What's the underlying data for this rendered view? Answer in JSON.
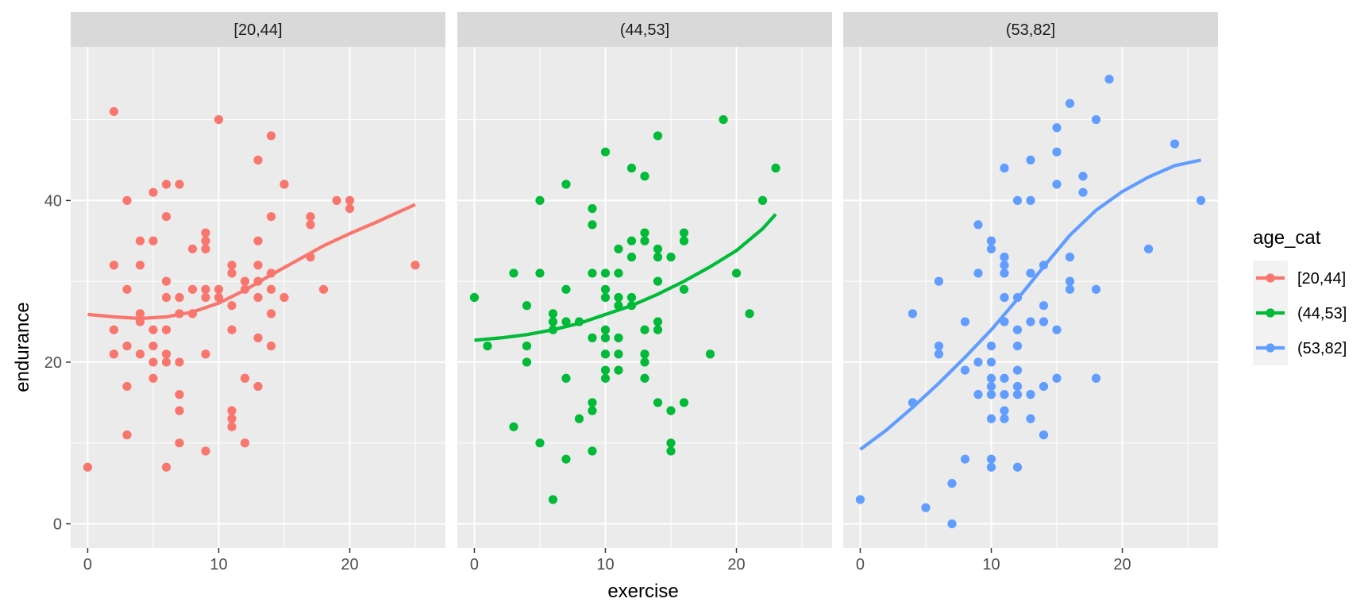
{
  "chart_data": {
    "type": "scatter",
    "title": "",
    "xlabel": "exercise",
    "ylabel": "endurance",
    "xlim": [
      -1.3,
      27.3
    ],
    "ylim": [
      -3,
      59
    ],
    "x_ticks": [
      0,
      10,
      20
    ],
    "y_ticks": [
      0,
      20,
      40
    ],
    "grid": true,
    "facet_by": "age_cat",
    "legend": {
      "title": "age_cat",
      "position": "right",
      "entries": [
        "[20,44]",
        "(44,53]",
        "(53,82]"
      ]
    },
    "panels": [
      {
        "name": "[20,44]",
        "color": "#F8766D",
        "points": [
          [
            0,
            7
          ],
          [
            2,
            51
          ],
          [
            2,
            32
          ],
          [
            2,
            24
          ],
          [
            2,
            21
          ],
          [
            3,
            40
          ],
          [
            3,
            29
          ],
          [
            3,
            22
          ],
          [
            3,
            17
          ],
          [
            3,
            11
          ],
          [
            4,
            35
          ],
          [
            4,
            32
          ],
          [
            4,
            26
          ],
          [
            4,
            25
          ],
          [
            4,
            21
          ],
          [
            5,
            41
          ],
          [
            5,
            35
          ],
          [
            5,
            24
          ],
          [
            5,
            22
          ],
          [
            5,
            20
          ],
          [
            5,
            18
          ],
          [
            6,
            42
          ],
          [
            6,
            38
          ],
          [
            6,
            30
          ],
          [
            6,
            28
          ],
          [
            6,
            24
          ],
          [
            6,
            21
          ],
          [
            6,
            20
          ],
          [
            6,
            7
          ],
          [
            7,
            42
          ],
          [
            7,
            28
          ],
          [
            7,
            26
          ],
          [
            7,
            20
          ],
          [
            7,
            16
          ],
          [
            7,
            14
          ],
          [
            7,
            10
          ],
          [
            8,
            34
          ],
          [
            8,
            29
          ],
          [
            8,
            26
          ],
          [
            9,
            36
          ],
          [
            9,
            35
          ],
          [
            9,
            34
          ],
          [
            9,
            29
          ],
          [
            9,
            28
          ],
          [
            9,
            21
          ],
          [
            9,
            9
          ],
          [
            10,
            50
          ],
          [
            10,
            29
          ],
          [
            10,
            28
          ],
          [
            11,
            32
          ],
          [
            11,
            31
          ],
          [
            11,
            27
          ],
          [
            11,
            24
          ],
          [
            11,
            14
          ],
          [
            11,
            13
          ],
          [
            11,
            12
          ],
          [
            12,
            30
          ],
          [
            12,
            29
          ],
          [
            12,
            18
          ],
          [
            12,
            10
          ],
          [
            13,
            45
          ],
          [
            13,
            35
          ],
          [
            13,
            32
          ],
          [
            13,
            30
          ],
          [
            13,
            28
          ],
          [
            13,
            23
          ],
          [
            13,
            17
          ],
          [
            14,
            48
          ],
          [
            14,
            38
          ],
          [
            14,
            31
          ],
          [
            14,
            29
          ],
          [
            14,
            26
          ],
          [
            14,
            22
          ],
          [
            15,
            42
          ],
          [
            15,
            28
          ],
          [
            17,
            38
          ],
          [
            17,
            37
          ],
          [
            17,
            33
          ],
          [
            18,
            29
          ],
          [
            19,
            40
          ],
          [
            20,
            40
          ],
          [
            20,
            39
          ],
          [
            25,
            32
          ]
        ],
        "smooth": [
          [
            0,
            25.9
          ],
          [
            2,
            25.6
          ],
          [
            4,
            25.4
          ],
          [
            6,
            25.6
          ],
          [
            8,
            26.2
          ],
          [
            10,
            27.3
          ],
          [
            12,
            28.9
          ],
          [
            14,
            30.8
          ],
          [
            16,
            32.6
          ],
          [
            18,
            34.4
          ],
          [
            20,
            35.9
          ],
          [
            22,
            37.3
          ],
          [
            25,
            39.5
          ]
        ]
      },
      {
        "name": "(44,53]",
        "color": "#00BA38",
        "points": [
          [
            0,
            28
          ],
          [
            1,
            22
          ],
          [
            3,
            31
          ],
          [
            3,
            12
          ],
          [
            4,
            27
          ],
          [
            4,
            22
          ],
          [
            4,
            20
          ],
          [
            5,
            40
          ],
          [
            5,
            31
          ],
          [
            5,
            10
          ],
          [
            6,
            26
          ],
          [
            6,
            25
          ],
          [
            6,
            24
          ],
          [
            6,
            3
          ],
          [
            7,
            42
          ],
          [
            7,
            29
          ],
          [
            7,
            25
          ],
          [
            7,
            18
          ],
          [
            7,
            8
          ],
          [
            8,
            25
          ],
          [
            8,
            13
          ],
          [
            9,
            39
          ],
          [
            9,
            37
          ],
          [
            9,
            31
          ],
          [
            9,
            23
          ],
          [
            9,
            15
          ],
          [
            9,
            14
          ],
          [
            9,
            9
          ],
          [
            10,
            46
          ],
          [
            10,
            31
          ],
          [
            10,
            29
          ],
          [
            10,
            28
          ],
          [
            10,
            24
          ],
          [
            10,
            23
          ],
          [
            10,
            21
          ],
          [
            10,
            19
          ],
          [
            10,
            18
          ],
          [
            11,
            34
          ],
          [
            11,
            31
          ],
          [
            11,
            28
          ],
          [
            11,
            27
          ],
          [
            11,
            23
          ],
          [
            11,
            21
          ],
          [
            11,
            19
          ],
          [
            12,
            44
          ],
          [
            12,
            35
          ],
          [
            12,
            33
          ],
          [
            12,
            28
          ],
          [
            12,
            27
          ],
          [
            13,
            43
          ],
          [
            13,
            36
          ],
          [
            13,
            35
          ],
          [
            13,
            24
          ],
          [
            13,
            21
          ],
          [
            13,
            20
          ],
          [
            13,
            18
          ],
          [
            14,
            48
          ],
          [
            14,
            34
          ],
          [
            14,
            33
          ],
          [
            14,
            30
          ],
          [
            14,
            25
          ],
          [
            14,
            24
          ],
          [
            14,
            15
          ],
          [
            15,
            33
          ],
          [
            15,
            14
          ],
          [
            15,
            10
          ],
          [
            15,
            9
          ],
          [
            16,
            36
          ],
          [
            16,
            35
          ],
          [
            16,
            29
          ],
          [
            16,
            15
          ],
          [
            18,
            21
          ],
          [
            19,
            50
          ],
          [
            20,
            31
          ],
          [
            21,
            26
          ],
          [
            22,
            40
          ],
          [
            23,
            44
          ]
        ],
        "smooth": [
          [
            0,
            22.7
          ],
          [
            2,
            23.0
          ],
          [
            4,
            23.4
          ],
          [
            6,
            24.0
          ],
          [
            8,
            24.8
          ],
          [
            10,
            25.9
          ],
          [
            12,
            27.0
          ],
          [
            14,
            28.4
          ],
          [
            16,
            30.0
          ],
          [
            18,
            31.8
          ],
          [
            20,
            33.8
          ],
          [
            22,
            36.5
          ],
          [
            23,
            38.3
          ]
        ]
      },
      {
        "name": "(53,82]",
        "color": "#619CFF",
        "points": [
          [
            0,
            3
          ],
          [
            4,
            26
          ],
          [
            4,
            15
          ],
          [
            5,
            2
          ],
          [
            6,
            30
          ],
          [
            6,
            22
          ],
          [
            6,
            21
          ],
          [
            7,
            5
          ],
          [
            7,
            0
          ],
          [
            8,
            25
          ],
          [
            8,
            19
          ],
          [
            8,
            8
          ],
          [
            9,
            37
          ],
          [
            9,
            31
          ],
          [
            9,
            20
          ],
          [
            9,
            16
          ],
          [
            10,
            35
          ],
          [
            10,
            34
          ],
          [
            10,
            22
          ],
          [
            10,
            20
          ],
          [
            10,
            18
          ],
          [
            10,
            17
          ],
          [
            10,
            16
          ],
          [
            10,
            13
          ],
          [
            10,
            8
          ],
          [
            10,
            7
          ],
          [
            11,
            44
          ],
          [
            11,
            33
          ],
          [
            11,
            32
          ],
          [
            11,
            31
          ],
          [
            11,
            28
          ],
          [
            11,
            25
          ],
          [
            11,
            18
          ],
          [
            11,
            16
          ],
          [
            11,
            14
          ],
          [
            11,
            13
          ],
          [
            12,
            40
          ],
          [
            12,
            28
          ],
          [
            12,
            24
          ],
          [
            12,
            22
          ],
          [
            12,
            19
          ],
          [
            12,
            17
          ],
          [
            12,
            16
          ],
          [
            12,
            7
          ],
          [
            13,
            45
          ],
          [
            13,
            40
          ],
          [
            13,
            31
          ],
          [
            13,
            25
          ],
          [
            13,
            16
          ],
          [
            13,
            13
          ],
          [
            14,
            32
          ],
          [
            14,
            27
          ],
          [
            14,
            25
          ],
          [
            14,
            17
          ],
          [
            14,
            11
          ],
          [
            15,
            49
          ],
          [
            15,
            46
          ],
          [
            15,
            42
          ],
          [
            15,
            24
          ],
          [
            15,
            18
          ],
          [
            16,
            52
          ],
          [
            16,
            33
          ],
          [
            16,
            30
          ],
          [
            16,
            29
          ],
          [
            17,
            43
          ],
          [
            17,
            41
          ],
          [
            18,
            50
          ],
          [
            18,
            29
          ],
          [
            18,
            18
          ],
          [
            19,
            55
          ],
          [
            22,
            34
          ],
          [
            24,
            47
          ],
          [
            26,
            40
          ]
        ],
        "smooth": [
          [
            0,
            9.2
          ],
          [
            2,
            11.6
          ],
          [
            4,
            14.4
          ],
          [
            6,
            17.4
          ],
          [
            8,
            20.6
          ],
          [
            10,
            24.0
          ],
          [
            12,
            27.8
          ],
          [
            14,
            31.8
          ],
          [
            16,
            35.7
          ],
          [
            18,
            38.8
          ],
          [
            20,
            41.1
          ],
          [
            22,
            42.9
          ],
          [
            24,
            44.3
          ],
          [
            26,
            45.0
          ]
        ]
      }
    ]
  }
}
